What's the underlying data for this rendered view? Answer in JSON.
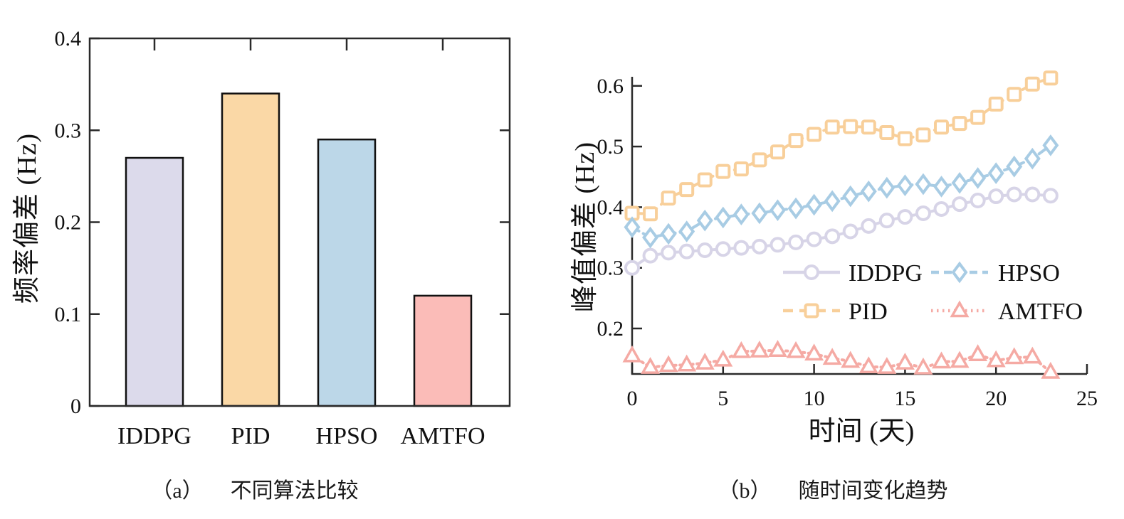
{
  "figure": {
    "background": "#ffffff",
    "text_color": "#111111",
    "axis_color": "#2a2a2a"
  },
  "chart_data": [
    {
      "type": "bar",
      "panel": "a",
      "caption_prefix": "（a）",
      "caption": "不同算法比较",
      "ylabel": "频率偏差 (Hz)",
      "xlabel": "",
      "categories": [
        "IDDPG",
        "PID",
        "HPSO",
        "AMTFO"
      ],
      "values": [
        0.27,
        0.34,
        0.29,
        0.12
      ],
      "bar_colors": [
        "#dcdaeb",
        "#fad8a6",
        "#bcd7e8",
        "#fbbcb8"
      ],
      "bar_edge_color": "#111111",
      "ylim": [
        0,
        0.4
      ],
      "yticks": [
        0,
        0.1,
        0.2,
        0.3,
        0.4
      ],
      "ytick_labels": [
        "0",
        "0.1",
        "0.2",
        "0.3",
        "0.4"
      ],
      "box": true,
      "grid": false
    },
    {
      "type": "line",
      "panel": "b",
      "caption_prefix": "（b）",
      "caption": "随时间变化趋势",
      "ylabel": "峰值偏差 (Hz)",
      "xlabel": "时间 (天)",
      "x": [
        0,
        1,
        2,
        3,
        4,
        5,
        6,
        7,
        8,
        9,
        10,
        11,
        12,
        13,
        14,
        15,
        16,
        17,
        18,
        19,
        20,
        21,
        22,
        23
      ],
      "xlim": [
        0,
        25
      ],
      "xticks": [
        0,
        5,
        10,
        15,
        20,
        25
      ],
      "xtick_labels": [
        "0",
        "5",
        "10",
        "15",
        "20",
        "25"
      ],
      "ylim": [
        0.125,
        0.615
      ],
      "yticks": [
        0.2,
        0.3,
        0.4,
        0.5,
        0.6
      ],
      "ytick_labels": [
        "0.2",
        "0.3",
        "0.4",
        "0.5",
        "0.6"
      ],
      "grid": false,
      "series": [
        {
          "name": "IDDPG",
          "color": "#d7d4e7",
          "marker": "circle",
          "linestyle": "solid",
          "values": [
            0.3,
            0.32,
            0.325,
            0.327,
            0.329,
            0.331,
            0.333,
            0.335,
            0.338,
            0.342,
            0.347,
            0.352,
            0.36,
            0.369,
            0.378,
            0.384,
            0.39,
            0.397,
            0.405,
            0.411,
            0.418,
            0.421,
            0.421,
            0.419
          ]
        },
        {
          "name": "PID",
          "color": "#f8cf9a",
          "marker": "square",
          "linestyle": "dashed",
          "values": [
            0.39,
            0.389,
            0.415,
            0.429,
            0.445,
            0.459,
            0.463,
            0.478,
            0.491,
            0.51,
            0.52,
            0.532,
            0.533,
            0.532,
            0.523,
            0.513,
            0.519,
            0.532,
            0.538,
            0.548,
            0.57,
            0.586,
            0.603,
            0.613
          ]
        },
        {
          "name": "HPSO",
          "color": "#a8cce4",
          "marker": "diamond",
          "linestyle": "dashdot",
          "values": [
            0.367,
            0.35,
            0.356,
            0.36,
            0.378,
            0.383,
            0.388,
            0.39,
            0.395,
            0.398,
            0.404,
            0.41,
            0.418,
            0.426,
            0.432,
            0.436,
            0.438,
            0.434,
            0.44,
            0.448,
            0.456,
            0.467,
            0.48,
            0.502
          ]
        },
        {
          "name": "AMTFO",
          "color": "#f5aaa4",
          "marker": "triangle",
          "linestyle": "dotted",
          "values": [
            0.155,
            0.136,
            0.139,
            0.14,
            0.143,
            0.148,
            0.162,
            0.163,
            0.164,
            0.162,
            0.158,
            0.151,
            0.146,
            0.137,
            0.136,
            0.143,
            0.135,
            0.145,
            0.146,
            0.157,
            0.147,
            0.152,
            0.153,
            0.128
          ]
        }
      ],
      "legend": {
        "position": "inside-center-right",
        "columns": 2,
        "order": [
          "IDDPG",
          "HPSO",
          "PID",
          "AMTFO"
        ]
      }
    }
  ]
}
